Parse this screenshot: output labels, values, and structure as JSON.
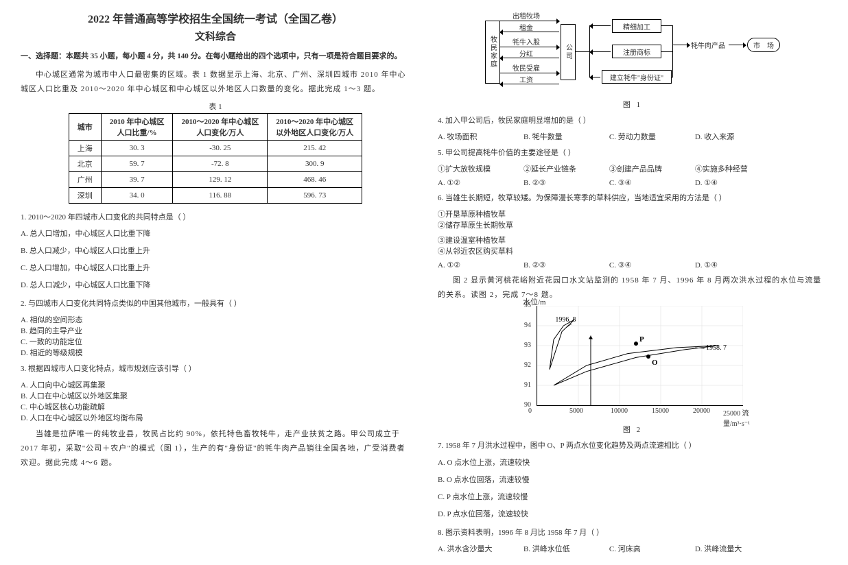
{
  "header": {
    "title1": "2022 年普通高等学校招生全国统一考试（全国乙卷）",
    "title2": "文科综合"
  },
  "section_instr": "一、选择题：本题共 35 小题，每小题 4 分，共 140 分。在每小题给出的四个选项中，只有一项是符合题目要求的。",
  "intro1": "中心城区通常为城市中人口最密集的区域。表 1 数据显示上海、北京、广州、深圳四城市 2010 年中心城区人口比重及 2010～2020 年中心城区和中心城区以外地区人口数量的变化。据此完成 1～3 题。",
  "table1": {
    "caption": "表 1",
    "columns": [
      "城市",
      "2010 年中心城区\n人口比重/%",
      "2010～2020 年中心城区\n人口变化/万人",
      "2010～2020 年中心城区\n以外地区人口变化/万人"
    ],
    "rows": [
      [
        "上海",
        "30. 3",
        "-30. 25",
        "215. 42"
      ],
      [
        "北京",
        "59. 7",
        "-72. 8",
        "300. 9"
      ],
      [
        "广州",
        "39. 7",
        "129. 12",
        "468. 46"
      ],
      [
        "深圳",
        "34. 0",
        "116. 88",
        "596. 73"
      ]
    ]
  },
  "q1": {
    "stem": "1.  2010～2020 年四城市人口变化的共同特点是（    ）",
    "opts": [
      "A.  总人口增加，中心城区人口比重下降",
      "B.  总人口减少，中心城区人口比重上升",
      "C.  总人口增加，中心城区人口比重上升",
      "D.  总人口减少，中心城区人口比重下降"
    ]
  },
  "q2": {
    "stem": "2.  与四城市人口变化共同特点类似的中国其他城市，一般具有（    ）",
    "opts": [
      "A.  相似的空间形态",
      "B.  趋同的主导产业",
      "C.  一致的功能定位",
      "D.  相近的等级规模"
    ]
  },
  "q3": {
    "stem": "3.  根据四城市人口变化特点，城市规划应该引导（    ）",
    "opts": [
      "A.  人口向中心城区再集聚",
      "B.  人口在中心城区以外地区集聚",
      "C.  中心城区核心功能疏解",
      "D.  人口在中心城区以外地区均衡布局"
    ]
  },
  "intro2": "当雄是拉萨唯一的纯牧业县，牧民占比约 90%，依托特色畜牧牦牛，走产业扶贫之路。甲公司成立于 2017 年初，采取\"公司＋农户\"的模式（图 1），生产的有\"身份证\"的牦牛肉产品销往全国各地，广受消费者欢迎。据此完成 4～6 题。",
  "diagram1": {
    "left_box": "牧民家庭",
    "mid_box": "公司",
    "arrows_left": [
      "出租牧场",
      "租金",
      "牦牛入股",
      "分红",
      "牧民受雇",
      "工资"
    ],
    "right_boxes": [
      "精细加工",
      "注册商标",
      "建立牦牛\"身份证\""
    ],
    "product": "牦牛肉产品",
    "market": "市　场",
    "caption": "图 1"
  },
  "q4": {
    "stem": "4.  加入甲公司后，牧民家庭明显增加的是（    ）",
    "opts": [
      "A.  牧场面积",
      "B.  牦牛数量",
      "C.  劳动力数量",
      "D.  收入来源"
    ]
  },
  "q5": {
    "stem": "5.  甲公司提高牦牛价值的主要途径是（    ）",
    "subopts": [
      "①扩大放牧规模",
      "②延长产业链条",
      "③创建产品品牌",
      "④实施多种经营"
    ],
    "opts": [
      "A.  ①②",
      "B.  ②③",
      "C.  ③④",
      "D.  ①④"
    ]
  },
  "q6": {
    "stem": "6.  当雄生长期短，牧草较矮。为保障漫长寒季的草料供应，当地适宜采用的方法是（    ）",
    "subopts": [
      "①开垦草原种植牧草",
      "②储存草原生长期牧草",
      "③建设温室种植牧草",
      "④从邻近农区购买草料"
    ],
    "opts": [
      "A.  ①②",
      "B.  ②③",
      "C.  ③④",
      "D.  ①④"
    ]
  },
  "intro3": "图 2 显示黄河桃花峪附近花园口水文站监测的 1958 年 7 月、1996 年 8 月两次洪水过程的水位与流量的关系。读图 2，完成 7～8 题。",
  "chart": {
    "caption": "图 2",
    "y_label": "水位/m",
    "x_label": "25000 流量/m³·s⁻¹",
    "y_ticks": [
      90,
      91,
      92,
      93,
      94,
      95
    ],
    "x_ticks": [
      0,
      5000,
      10000,
      15000,
      20000,
      25000
    ],
    "annot1": "1996. 8",
    "annot2": "1958. 7",
    "pt_p": "P",
    "pt_o": "O",
    "series1": [
      [
        1500,
        91.8
      ],
      [
        3000,
        93.7
      ],
      [
        4500,
        94.3
      ],
      [
        3200,
        94.0
      ],
      [
        2000,
        93.3
      ],
      [
        1500,
        91.8
      ]
    ],
    "series2": [
      [
        2000,
        91.0
      ],
      [
        6000,
        91.7
      ],
      [
        12000,
        92.4
      ],
      [
        18000,
        92.8
      ],
      [
        22000,
        93.0
      ],
      [
        17000,
        92.9
      ],
      [
        11000,
        92.6
      ],
      [
        6000,
        92.0
      ],
      [
        2000,
        91.0
      ]
    ],
    "arrow_up": [
      [
        6500,
        93.5
      ],
      [
        6500,
        90.0
      ]
    ],
    "p_pos": [
      12000,
      93.1
    ],
    "o_pos": [
      13500,
      92.45
    ]
  },
  "q7": {
    "stem": "7.  1958 年 7 月洪水过程中，图中 O、P 两点水位变化趋势及两点流速相比（    ）",
    "opts": [
      "A.  O 点水位上涨，流速较快",
      "B.  O 点水位回落，流速较慢",
      "C.  P 点水位上涨，流速较慢",
      "D.  P 点水位回落，流速较快"
    ]
  },
  "q8": {
    "stem": "8.  图示资料表明，1996 年 8 月比 1958 年 7 月（    ）",
    "opts": [
      "A.  洪水含沙量大",
      "B.  洪峰水位低",
      "C.  河床高",
      "D.  洪峰流量大"
    ]
  }
}
